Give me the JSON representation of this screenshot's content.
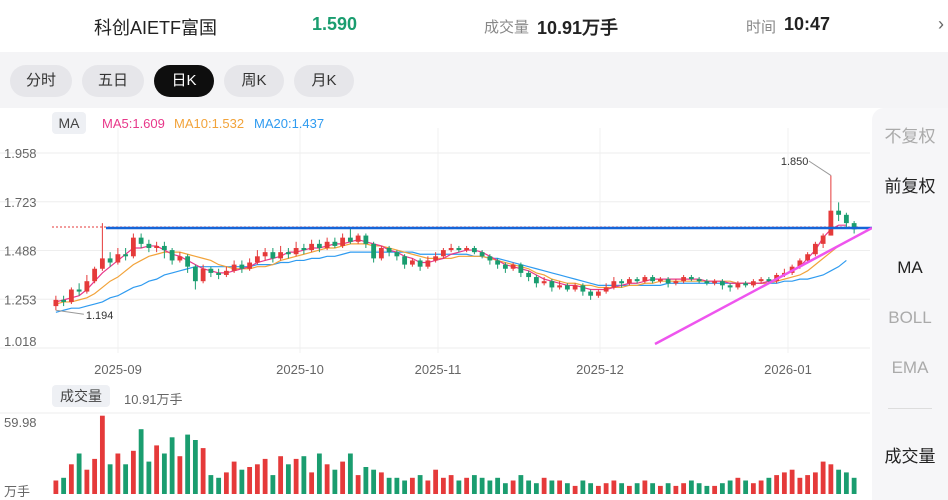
{
  "header": {
    "name": "科创AIETF富国",
    "price": "1.590",
    "volume_label": "成交量",
    "volume": "10.91万手",
    "time_label": "时间",
    "time": "10:47",
    "edge_glyph": "›"
  },
  "tabs": [
    {
      "label": "分时",
      "active": false
    },
    {
      "label": "五日",
      "active": false
    },
    {
      "label": "日K",
      "active": true
    },
    {
      "label": "周K",
      "active": false
    },
    {
      "label": "月K",
      "active": false
    }
  ],
  "indicators": {
    "ma_tag": "MA",
    "ma5": "MA5:1.609",
    "ma10": "MA10:1.532",
    "ma20": "MA20:1.437",
    "ma5_color": "#e8388a",
    "ma10_color": "#f2a33a",
    "ma20_color": "#2f9bf0"
  },
  "sidebar": {
    "items": [
      "不复权",
      "前复权",
      "MA",
      "BOLL",
      "EMA",
      "成交量"
    ],
    "selected": [
      "前复权",
      "MA",
      "成交量"
    ]
  },
  "volume_panel": {
    "label": "成交量",
    "value": "10.91万手",
    "axis_top": "59.98",
    "axis_unit": "万手"
  },
  "chart_data": {
    "type": "candlestick",
    "y_ticks": [
      "1.958",
      "1.723",
      "1.488",
      "1.253",
      "1.018"
    ],
    "ylim": [
      1.018,
      1.958
    ],
    "x_ticks": [
      "2025-09",
      "2025-10",
      "2025-11",
      "2025-12",
      "2026-01"
    ],
    "annotations": {
      "max": "1.850",
      "min": "1.194"
    },
    "up_color": "#e53a3a",
    "down_color": "#1a9d6f",
    "support_line_color": "#1565d8",
    "trend_line_color": "#ee55ee",
    "candles": [
      [
        1.22,
        1.25,
        1.27,
        1.2
      ],
      [
        1.25,
        1.24,
        1.27,
        1.22
      ],
      [
        1.24,
        1.3,
        1.31,
        1.23
      ],
      [
        1.3,
        1.29,
        1.33,
        1.27
      ],
      [
        1.29,
        1.34,
        1.37,
        1.28
      ],
      [
        1.34,
        1.4,
        1.41,
        1.33
      ],
      [
        1.4,
        1.45,
        1.62,
        1.39
      ],
      [
        1.45,
        1.43,
        1.48,
        1.41
      ],
      [
        1.43,
        1.47,
        1.5,
        1.42
      ],
      [
        1.47,
        1.46,
        1.5,
        1.44
      ],
      [
        1.46,
        1.55,
        1.57,
        1.45
      ],
      [
        1.55,
        1.52,
        1.57,
        1.5
      ],
      [
        1.52,
        1.5,
        1.54,
        1.48
      ],
      [
        1.5,
        1.51,
        1.53,
        1.48
      ],
      [
        1.51,
        1.49,
        1.53,
        1.45
      ],
      [
        1.49,
        1.44,
        1.5,
        1.42
      ],
      [
        1.44,
        1.46,
        1.48,
        1.43
      ],
      [
        1.46,
        1.41,
        1.47,
        1.38
      ],
      [
        1.41,
        1.34,
        1.42,
        1.3
      ],
      [
        1.34,
        1.4,
        1.42,
        1.33
      ],
      [
        1.4,
        1.38,
        1.41,
        1.36
      ],
      [
        1.38,
        1.37,
        1.4,
        1.35
      ],
      [
        1.37,
        1.39,
        1.41,
        1.36
      ],
      [
        1.39,
        1.42,
        1.44,
        1.38
      ],
      [
        1.42,
        1.4,
        1.44,
        1.38
      ],
      [
        1.4,
        1.43,
        1.45,
        1.39
      ],
      [
        1.43,
        1.46,
        1.49,
        1.42
      ],
      [
        1.46,
        1.48,
        1.5,
        1.44
      ],
      [
        1.48,
        1.45,
        1.5,
        1.43
      ],
      [
        1.45,
        1.48,
        1.51,
        1.44
      ],
      [
        1.48,
        1.47,
        1.5,
        1.45
      ],
      [
        1.47,
        1.5,
        1.53,
        1.46
      ],
      [
        1.5,
        1.49,
        1.52,
        1.47
      ],
      [
        1.49,
        1.52,
        1.54,
        1.48
      ],
      [
        1.52,
        1.5,
        1.54,
        1.48
      ],
      [
        1.5,
        1.53,
        1.55,
        1.49
      ],
      [
        1.53,
        1.51,
        1.55,
        1.5
      ],
      [
        1.51,
        1.55,
        1.57,
        1.5
      ],
      [
        1.55,
        1.53,
        1.6,
        1.52
      ],
      [
        1.53,
        1.56,
        1.57,
        1.52
      ],
      [
        1.56,
        1.52,
        1.57,
        1.5
      ],
      [
        1.52,
        1.45,
        1.53,
        1.43
      ],
      [
        1.45,
        1.5,
        1.51,
        1.44
      ],
      [
        1.5,
        1.48,
        1.51,
        1.46
      ],
      [
        1.48,
        1.46,
        1.49,
        1.44
      ],
      [
        1.46,
        1.42,
        1.47,
        1.4
      ],
      [
        1.42,
        1.44,
        1.45,
        1.41
      ],
      [
        1.44,
        1.41,
        1.45,
        1.39
      ],
      [
        1.41,
        1.44,
        1.46,
        1.4
      ],
      [
        1.44,
        1.46,
        1.48,
        1.43
      ],
      [
        1.46,
        1.49,
        1.5,
        1.45
      ],
      [
        1.49,
        1.5,
        1.52,
        1.48
      ],
      [
        1.5,
        1.49,
        1.51,
        1.48
      ],
      [
        1.49,
        1.5,
        1.51,
        1.48
      ],
      [
        1.5,
        1.48,
        1.51,
        1.47
      ],
      [
        1.48,
        1.46,
        1.49,
        1.45
      ],
      [
        1.46,
        1.44,
        1.47,
        1.42
      ],
      [
        1.44,
        1.42,
        1.45,
        1.4
      ],
      [
        1.42,
        1.4,
        1.43,
        1.38
      ],
      [
        1.4,
        1.42,
        1.43,
        1.39
      ],
      [
        1.42,
        1.38,
        1.43,
        1.36
      ],
      [
        1.38,
        1.36,
        1.39,
        1.34
      ],
      [
        1.36,
        1.33,
        1.37,
        1.31
      ],
      [
        1.33,
        1.34,
        1.36,
        1.32
      ],
      [
        1.34,
        1.31,
        1.35,
        1.29
      ],
      [
        1.31,
        1.32,
        1.34,
        1.3
      ],
      [
        1.32,
        1.3,
        1.33,
        1.29
      ],
      [
        1.3,
        1.32,
        1.33,
        1.29
      ],
      [
        1.32,
        1.29,
        1.33,
        1.27
      ],
      [
        1.29,
        1.27,
        1.3,
        1.25
      ],
      [
        1.27,
        1.29,
        1.3,
        1.26
      ],
      [
        1.29,
        1.31,
        1.33,
        1.28
      ],
      [
        1.31,
        1.34,
        1.36,
        1.3
      ],
      [
        1.34,
        1.33,
        1.35,
        1.31
      ],
      [
        1.33,
        1.35,
        1.36,
        1.32
      ],
      [
        1.35,
        1.34,
        1.36,
        1.33
      ],
      [
        1.34,
        1.36,
        1.37,
        1.33
      ],
      [
        1.36,
        1.34,
        1.37,
        1.33
      ],
      [
        1.34,
        1.35,
        1.36,
        1.33
      ],
      [
        1.35,
        1.33,
        1.36,
        1.31
      ],
      [
        1.33,
        1.34,
        1.35,
        1.32
      ],
      [
        1.34,
        1.36,
        1.37,
        1.33
      ],
      [
        1.36,
        1.35,
        1.37,
        1.34
      ],
      [
        1.35,
        1.34,
        1.36,
        1.33
      ],
      [
        1.34,
        1.33,
        1.35,
        1.32
      ],
      [
        1.33,
        1.34,
        1.35,
        1.32
      ],
      [
        1.34,
        1.32,
        1.35,
        1.3
      ],
      [
        1.32,
        1.31,
        1.33,
        1.29
      ],
      [
        1.31,
        1.33,
        1.34,
        1.3
      ],
      [
        1.33,
        1.32,
        1.34,
        1.31
      ],
      [
        1.32,
        1.34,
        1.35,
        1.31
      ],
      [
        1.34,
        1.35,
        1.36,
        1.33
      ],
      [
        1.35,
        1.34,
        1.36,
        1.33
      ],
      [
        1.34,
        1.37,
        1.38,
        1.33
      ],
      [
        1.37,
        1.38,
        1.4,
        1.36
      ],
      [
        1.38,
        1.41,
        1.42,
        1.37
      ],
      [
        1.41,
        1.44,
        1.45,
        1.4
      ],
      [
        1.44,
        1.47,
        1.48,
        1.43
      ],
      [
        1.47,
        1.52,
        1.53,
        1.46
      ],
      [
        1.52,
        1.56,
        1.57,
        1.5
      ],
      [
        1.56,
        1.68,
        1.85,
        1.56
      ],
      [
        1.68,
        1.66,
        1.72,
        1.63
      ],
      [
        1.66,
        1.62,
        1.67,
        1.6
      ],
      [
        1.62,
        1.59,
        1.63,
        1.57
      ]
    ],
    "ma5": [
      1.24,
      1.25,
      1.26,
      1.27,
      1.3,
      1.34,
      1.38,
      1.41,
      1.44,
      1.47,
      1.5,
      1.5,
      1.51,
      1.51,
      1.49,
      1.47,
      1.46,
      1.44,
      1.42,
      1.4,
      1.39,
      1.38,
      1.38,
      1.39,
      1.4,
      1.41,
      1.43,
      1.44,
      1.45,
      1.46,
      1.48,
      1.48,
      1.49,
      1.5,
      1.5,
      1.51,
      1.52,
      1.52,
      1.53,
      1.54,
      1.53,
      1.52,
      1.51,
      1.49,
      1.48,
      1.46,
      1.45,
      1.43,
      1.43,
      1.44,
      1.45,
      1.47,
      1.48,
      1.49,
      1.49,
      1.48,
      1.46,
      1.44,
      1.42,
      1.41,
      1.4,
      1.39,
      1.37,
      1.35,
      1.34,
      1.33,
      1.32,
      1.32,
      1.31,
      1.3,
      1.3,
      1.3,
      1.31,
      1.32,
      1.33,
      1.33,
      1.34,
      1.35,
      1.35,
      1.35,
      1.35,
      1.35,
      1.35,
      1.35,
      1.34,
      1.34,
      1.34,
      1.33,
      1.33,
      1.33,
      1.33,
      1.33,
      1.34,
      1.35,
      1.37,
      1.39,
      1.41,
      1.45,
      1.49,
      1.55,
      1.59,
      1.61,
      1.61
    ],
    "ma10": [
      1.23,
      1.24,
      1.24,
      1.25,
      1.26,
      1.28,
      1.31,
      1.34,
      1.36,
      1.39,
      1.42,
      1.44,
      1.46,
      1.47,
      1.48,
      1.48,
      1.48,
      1.47,
      1.46,
      1.45,
      1.44,
      1.42,
      1.41,
      1.4,
      1.4,
      1.4,
      1.41,
      1.41,
      1.42,
      1.44,
      1.45,
      1.46,
      1.47,
      1.48,
      1.49,
      1.5,
      1.5,
      1.51,
      1.52,
      1.52,
      1.52,
      1.51,
      1.51,
      1.5,
      1.49,
      1.48,
      1.47,
      1.46,
      1.45,
      1.45,
      1.45,
      1.45,
      1.46,
      1.46,
      1.46,
      1.46,
      1.45,
      1.44,
      1.43,
      1.42,
      1.41,
      1.4,
      1.38,
      1.37,
      1.35,
      1.34,
      1.33,
      1.33,
      1.32,
      1.32,
      1.31,
      1.31,
      1.31,
      1.31,
      1.32,
      1.32,
      1.33,
      1.33,
      1.34,
      1.34,
      1.34,
      1.34,
      1.34,
      1.34,
      1.34,
      1.34,
      1.34,
      1.34,
      1.33,
      1.33,
      1.33,
      1.33,
      1.33,
      1.34,
      1.35,
      1.36,
      1.37,
      1.39,
      1.42,
      1.45,
      1.48,
      1.51,
      1.53
    ],
    "ma20": [
      1.19,
      1.2,
      1.21,
      1.21,
      1.22,
      1.23,
      1.24,
      1.26,
      1.27,
      1.29,
      1.31,
      1.32,
      1.34,
      1.35,
      1.37,
      1.38,
      1.39,
      1.4,
      1.41,
      1.41,
      1.41,
      1.41,
      1.41,
      1.41,
      1.41,
      1.41,
      1.42,
      1.42,
      1.42,
      1.43,
      1.43,
      1.44,
      1.44,
      1.45,
      1.45,
      1.46,
      1.46,
      1.47,
      1.48,
      1.48,
      1.48,
      1.48,
      1.48,
      1.48,
      1.48,
      1.48,
      1.48,
      1.47,
      1.47,
      1.47,
      1.47,
      1.47,
      1.47,
      1.47,
      1.46,
      1.46,
      1.45,
      1.45,
      1.44,
      1.43,
      1.42,
      1.41,
      1.4,
      1.39,
      1.38,
      1.37,
      1.36,
      1.35,
      1.34,
      1.33,
      1.32,
      1.32,
      1.32,
      1.32,
      1.32,
      1.32,
      1.32,
      1.32,
      1.32,
      1.33,
      1.33,
      1.33,
      1.33,
      1.33,
      1.33,
      1.33,
      1.33,
      1.33,
      1.33,
      1.33,
      1.33,
      1.33,
      1.33,
      1.33,
      1.34,
      1.34,
      1.35,
      1.35,
      1.36,
      1.37,
      1.39,
      1.41,
      1.44
    ],
    "volumes": [
      10,
      12,
      22,
      30,
      18,
      26,
      58,
      22,
      30,
      22,
      32,
      48,
      24,
      36,
      30,
      42,
      28,
      44,
      40,
      34,
      14,
      12,
      16,
      24,
      18,
      20,
      22,
      26,
      14,
      28,
      22,
      26,
      28,
      16,
      30,
      22,
      18,
      24,
      30,
      14,
      20,
      18,
      16,
      12,
      12,
      10,
      12,
      14,
      10,
      18,
      12,
      14,
      10,
      12,
      14,
      12,
      10,
      12,
      8,
      10,
      14,
      10,
      8,
      12,
      10,
      10,
      8,
      6,
      10,
      8,
      6,
      8,
      10,
      8,
      6,
      8,
      10,
      8,
      6,
      8,
      6,
      8,
      10,
      8,
      6,
      6,
      8,
      10,
      12,
      10,
      8,
      10,
      12,
      14,
      16,
      18,
      12,
      14,
      16,
      24,
      22,
      18,
      16,
      12
    ]
  }
}
